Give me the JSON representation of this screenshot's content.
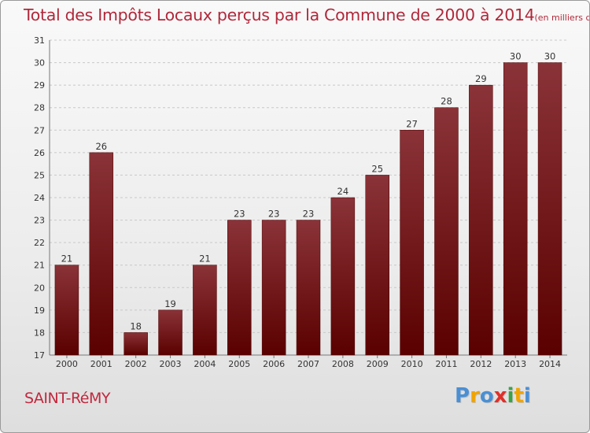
{
  "header": {
    "title": "Total des Impôts Locaux perçus par la Commune de 2000 à 2014",
    "unit": "(en milliers d'€)"
  },
  "footer": {
    "commune": "SAINT-RéMY",
    "brand": "Proxiti",
    "brand_letters": [
      "P",
      "r",
      "o",
      "x",
      "i",
      "t",
      "i"
    ],
    "brand_colors": [
      "#4a8fd4",
      "#f0a400",
      "#4a8fd4",
      "#e0302a",
      "#3aa346",
      "#f0a400",
      "#4a8fd4"
    ]
  },
  "chart_data": {
    "type": "bar",
    "title": "Total des Impôts Locaux perçus par la Commune de 2000 à 2014",
    "xlabel": "",
    "ylabel": "",
    "categories": [
      "2000",
      "2001",
      "2002",
      "2003",
      "2004",
      "2005",
      "2006",
      "2007",
      "2008",
      "2009",
      "2010",
      "2011",
      "2012",
      "2013",
      "2014"
    ],
    "values": [
      21,
      26,
      18,
      19,
      21,
      23,
      23,
      23,
      24,
      25,
      27,
      28,
      29,
      30,
      30
    ],
    "ylim": [
      17,
      31
    ],
    "yticks": [
      17,
      18,
      19,
      20,
      21,
      22,
      23,
      24,
      25,
      26,
      27,
      28,
      29,
      30,
      31
    ],
    "grid": true,
    "bar_color_top": "#8a3338",
    "bar_color_bottom": "#5a0000"
  }
}
